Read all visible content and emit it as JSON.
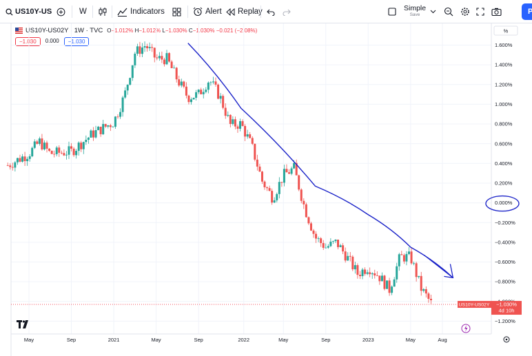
{
  "toolbar": {
    "symbol": "US10Y-US",
    "interval": "W",
    "indicators_label": "Indicators",
    "alert_label": "Alert",
    "replay_label": "Replay",
    "layout_label": "Simple",
    "layout_sub": "Save",
    "publish_label": "Pu"
  },
  "legend": {
    "title": "US10Y-US02Y · 1W · TVC",
    "o_label": "O",
    "o_value": "−1.012%",
    "h_label": "H",
    "h_value": "−1.012%",
    "l_label": "L",
    "l_value": "−1.030%",
    "c_label": "C",
    "c_value": "−1.030%",
    "change": "−0.021 (−2.08%)",
    "pill_sell": "−1.030",
    "pill_spread": "0.000",
    "pill_buy": "−1.030"
  },
  "price_axis": {
    "unit_button": "%",
    "current_label": "US10Y-US02Y",
    "current_value": "−1.030%",
    "countdown": "4d 10h"
  },
  "colors": {
    "up": "#26a69a",
    "down": "#ef5350",
    "drawing": "#1a22c8",
    "accent": "#2962ff",
    "price_line": "#f23645"
  },
  "chart_data": {
    "type": "candlestick",
    "timeframe": "1W",
    "y_unit": "%",
    "ylim": [
      -1.33,
      1.82
    ],
    "y_ticks": [
      -1.2,
      -1.0,
      -0.8,
      -0.6,
      -0.4,
      -0.2,
      0.0,
      0.2,
      0.4,
      0.6,
      0.8,
      1.0,
      1.2,
      1.4,
      1.6
    ],
    "y_tick_labels": [
      "−1.200%",
      "−1.000%",
      "−0.800%",
      "−0.600%",
      "−0.400%",
      "−0.200%",
      "0.000%",
      "0.200%",
      "0.400%",
      "0.600%",
      "0.800%",
      "1.000%",
      "1.200%",
      "1.400%",
      "1.600%"
    ],
    "x_labels": [
      {
        "label": "May",
        "date": "2020-05"
      },
      {
        "label": "Sep",
        "date": "2020-09"
      },
      {
        "label": "2021",
        "date": "2021-01"
      },
      {
        "label": "May",
        "date": "2021-05"
      },
      {
        "label": "Sep",
        "date": "2021-09"
      },
      {
        "label": "2022",
        "date": "2022-01"
      },
      {
        "label": "May",
        "date": "2022-05"
      },
      {
        "label": "Sep",
        "date": "2022-09"
      },
      {
        "label": "2023",
        "date": "2023-01"
      },
      {
        "label": "May",
        "date": "2023-05"
      },
      {
        "label": "Aug",
        "date": "2023-08"
      }
    ],
    "path_anchors": [
      {
        "date": "2020-03",
        "value": 0.38
      },
      {
        "date": "2020-05",
        "value": 0.5
      },
      {
        "date": "2020-06",
        "value": 0.62
      },
      {
        "date": "2020-07",
        "value": 0.5
      },
      {
        "date": "2020-09",
        "value": 0.52
      },
      {
        "date": "2020-11",
        "value": 0.7
      },
      {
        "date": "2021-01",
        "value": 0.82
      },
      {
        "date": "2021-02",
        "value": 1.08
      },
      {
        "date": "2021-03",
        "value": 1.52
      },
      {
        "date": "2021-04",
        "value": 1.6
      },
      {
        "date": "2021-05",
        "value": 1.46
      },
      {
        "date": "2021-06",
        "value": 1.46
      },
      {
        "date": "2021-07",
        "value": 1.25
      },
      {
        "date": "2021-08",
        "value": 1.07
      },
      {
        "date": "2021-09",
        "value": 1.1
      },
      {
        "date": "2021-10",
        "value": 1.25
      },
      {
        "date": "2021-11",
        "value": 1.08
      },
      {
        "date": "2021-12",
        "value": 0.79
      },
      {
        "date": "2022-01",
        "value": 0.8
      },
      {
        "date": "2022-02",
        "value": 0.58
      },
      {
        "date": "2022-03",
        "value": 0.22
      },
      {
        "date": "2022-04",
        "value": 0.05
      },
      {
        "date": "2022-05",
        "value": 0.28
      },
      {
        "date": "2022-06",
        "value": 0.35
      },
      {
        "date": "2022-07",
        "value": -0.05
      },
      {
        "date": "2022-08",
        "value": -0.35
      },
      {
        "date": "2022-09",
        "value": -0.45
      },
      {
        "date": "2022-10",
        "value": -0.4
      },
      {
        "date": "2022-11",
        "value": -0.55
      },
      {
        "date": "2022-12",
        "value": -0.72
      },
      {
        "date": "2023-01",
        "value": -0.65
      },
      {
        "date": "2023-02",
        "value": -0.74
      },
      {
        "date": "2023-03",
        "value": -0.88
      },
      {
        "date": "2023-04",
        "value": -0.55
      },
      {
        "date": "2023-05",
        "value": -0.55
      },
      {
        "date": "2023-06",
        "value": -0.87
      },
      {
        "date": "2023-07",
        "value": -1.03
      }
    ],
    "trend_line": [
      {
        "date": "2021-08",
        "value": 1.62
      },
      {
        "date": "2022-01",
        "value": 0.96
      },
      {
        "date": "2022-08",
        "value": 0.17
      },
      {
        "date": "2023-01",
        "value": -0.12
      },
      {
        "date": "2023-05",
        "value": -0.45
      },
      {
        "date": "2023-09",
        "value": -0.76
      }
    ],
    "current_value": -1.03
  }
}
